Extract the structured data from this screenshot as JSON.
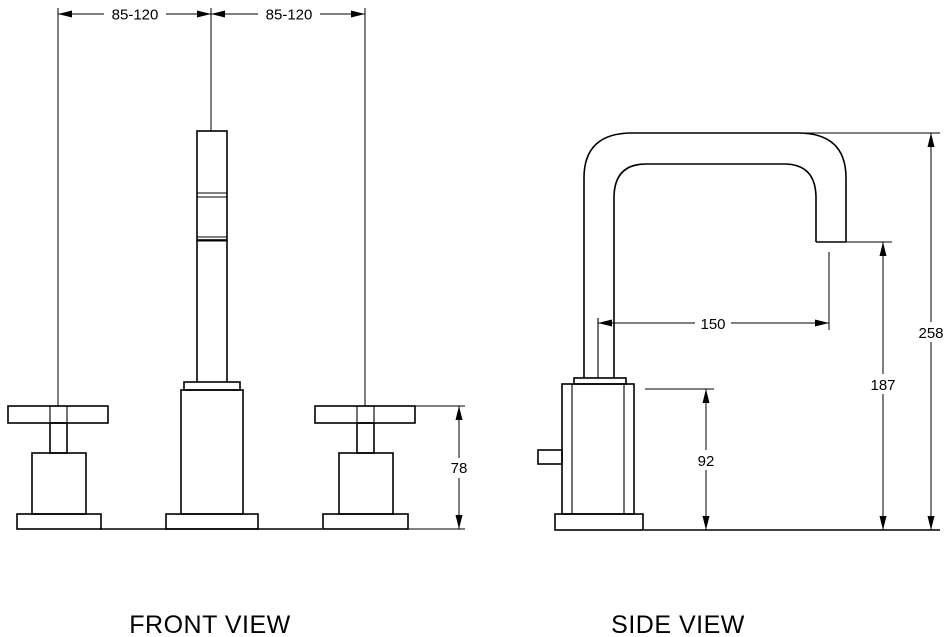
{
  "dimensions": {
    "left_spacing": "85-120",
    "right_spacing": "85-120",
    "handle_height": "78",
    "spout_reach": "150",
    "body_height": "92",
    "spout_outlet_height": "187",
    "overall_height": "258"
  },
  "labels": {
    "front_view": "FRONT VIEW",
    "side_view": "SIDE VIEW"
  }
}
